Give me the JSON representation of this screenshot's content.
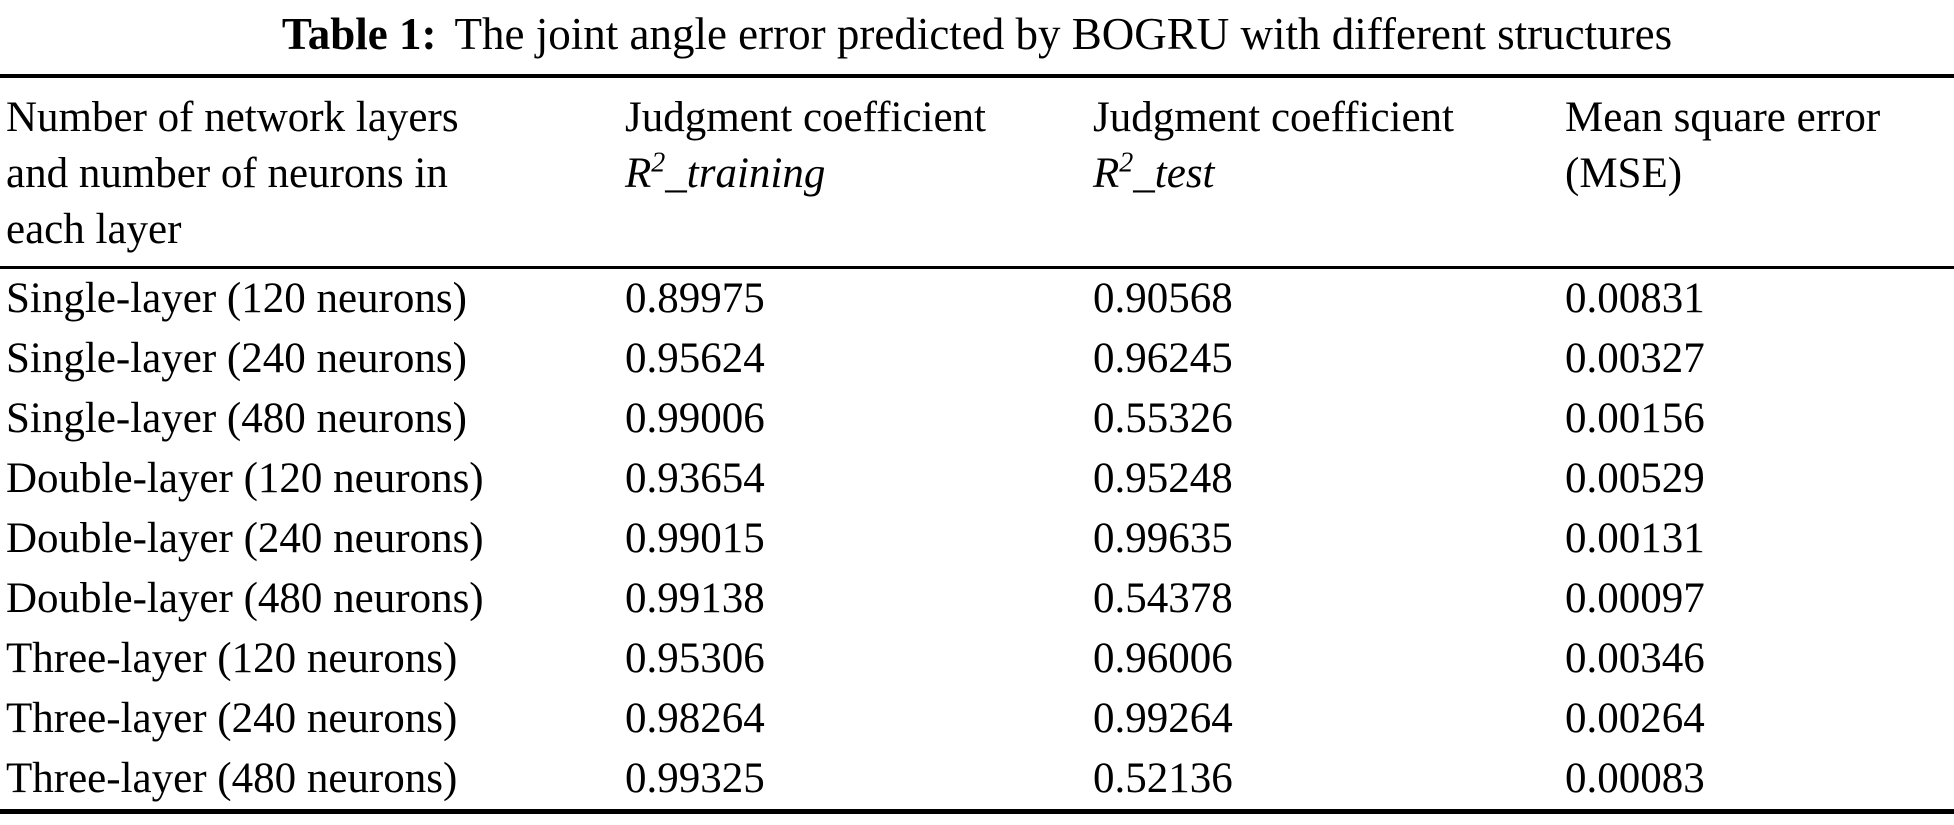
{
  "page": {
    "background": "#ffffff",
    "text_color": "#000000"
  },
  "table": {
    "caption": {
      "label": "Table 1:",
      "text": "The joint angle error predicted by BOGRU with different structures"
    },
    "columns": [
      {
        "id": "structure",
        "line1": "Number of network layers",
        "line2": "and number of neurons in",
        "line3": "each layer"
      },
      {
        "id": "r2_training",
        "line1": "Judgment coefficient",
        "formula": {
          "base": "R",
          "sup": "2",
          "suffix": "_training"
        }
      },
      {
        "id": "r2_test",
        "line1": "Judgment coefficient",
        "formula": {
          "base": "R",
          "sup": "2",
          "suffix": "_test"
        }
      },
      {
        "id": "mse",
        "line1": "Mean square error",
        "line2": "(MSE)"
      }
    ],
    "rows": [
      {
        "structure": "Single-layer (120 neurons)",
        "r2_training": "0.89975",
        "r2_test": "0.90568",
        "mse": "0.00831"
      },
      {
        "structure": "Single-layer (240 neurons)",
        "r2_training": "0.95624",
        "r2_test": "0.96245",
        "mse": "0.00327"
      },
      {
        "structure": "Single-layer (480 neurons)",
        "r2_training": "0.99006",
        "r2_test": "0.55326",
        "mse": "0.00156"
      },
      {
        "structure": "Double-layer (120 neurons)",
        "r2_training": "0.93654",
        "r2_test": "0.95248",
        "mse": "0.00529"
      },
      {
        "structure": "Double-layer (240 neurons)",
        "r2_training": "0.99015",
        "r2_test": "0.99635",
        "mse": "0.00131"
      },
      {
        "structure": "Double-layer (480 neurons)",
        "r2_training": "0.99138",
        "r2_test": "0.54378",
        "mse": "0.00097"
      },
      {
        "structure": "Three-layer (120 neurons)",
        "r2_training": "0.95306",
        "r2_test": "0.96006",
        "mse": "0.00346"
      },
      {
        "structure": "Three-layer (240 neurons)",
        "r2_training": "0.98264",
        "r2_test": "0.99264",
        "mse": "0.00264"
      },
      {
        "structure": "Three-layer (480 neurons)",
        "r2_training": "0.99325",
        "r2_test": "0.52136",
        "mse": "0.00083"
      }
    ]
  }
}
